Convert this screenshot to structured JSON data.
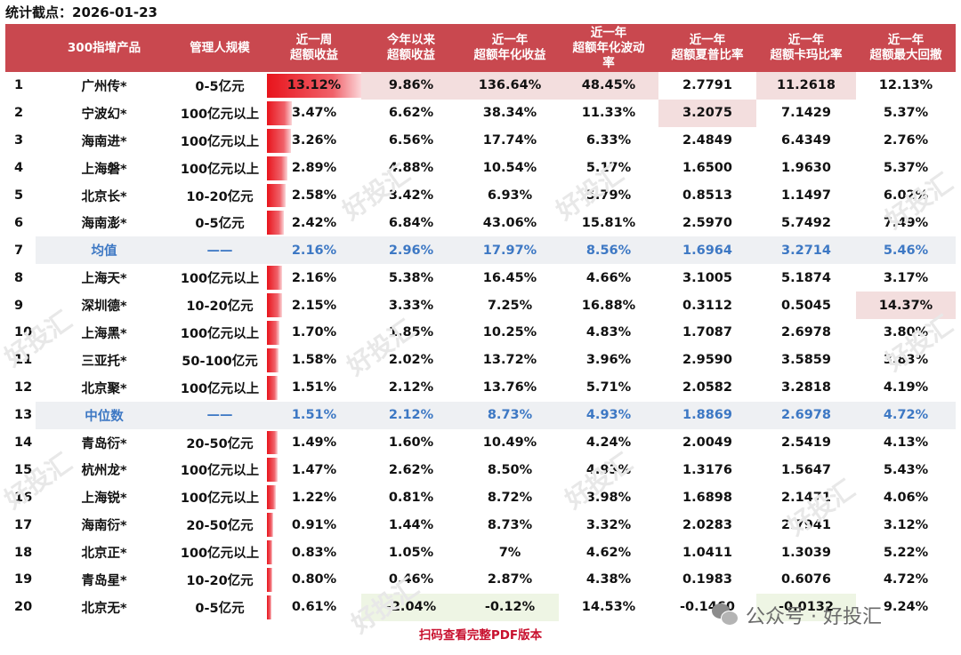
{
  "stat_date": "统计截点：2026-01-23",
  "headers": [
    {
      "lines": [
        "300指增产品"
      ]
    },
    {
      "lines": [
        "管理人规模"
      ]
    },
    {
      "lines": [
        "近一周",
        "超额收益"
      ]
    },
    {
      "lines": [
        "今年以来",
        "超额收益"
      ]
    },
    {
      "lines": [
        "近一年",
        "超额年化收益"
      ]
    },
    {
      "lines": [
        "近一年",
        "超额年化波动",
        "率"
      ]
    },
    {
      "lines": [
        "近一年",
        "超额夏普比率"
      ]
    },
    {
      "lines": [
        "近一年",
        "超额卡玛比率"
      ]
    },
    {
      "lines": [
        "近一年",
        "超额最大回撤"
      ]
    }
  ],
  "rows": [
    {
      "idx": "1",
      "name": "广州传*",
      "scale": "0-5亿元",
      "week": "13.12%",
      "week_pct": 100,
      "ytd": "9.86%",
      "yr_ret": "136.64%",
      "yr_vol": "48.45%",
      "sharpe": "2.7791",
      "calmar": "11.2618",
      "mdd": "12.13%",
      "hl": {
        "ytd": "hi",
        "yr_ret": "hi",
        "yr_vol": "hi",
        "calmar": "hi"
      }
    },
    {
      "idx": "2",
      "name": "宁波幻*",
      "scale": "100亿元以上",
      "week": "3.47%",
      "week_pct": 26,
      "ytd": "6.62%",
      "yr_ret": "38.34%",
      "yr_vol": "11.33%",
      "sharpe": "3.2075",
      "calmar": "7.1429",
      "mdd": "5.37%",
      "hl": {
        "sharpe": "hi"
      }
    },
    {
      "idx": "3",
      "name": "海南进*",
      "scale": "100亿元以上",
      "week": "3.26%",
      "week_pct": 25,
      "ytd": "6.56%",
      "yr_ret": "17.74%",
      "yr_vol": "6.33%",
      "sharpe": "2.4849",
      "calmar": "6.4349",
      "mdd": "2.76%"
    },
    {
      "idx": "4",
      "name": "上海磐*",
      "scale": "100亿元以上",
      "week": "2.89%",
      "week_pct": 22,
      "ytd": "4.88%",
      "yr_ret": "10.54%",
      "yr_vol": "5.17%",
      "sharpe": "1.6500",
      "calmar": "1.9630",
      "mdd": "5.37%"
    },
    {
      "idx": "5",
      "name": "北京长*",
      "scale": "10-20亿元",
      "week": "2.58%",
      "week_pct": 20,
      "ytd": "3.42%",
      "yr_ret": "6.93%",
      "yr_vol": "5.79%",
      "sharpe": "0.8513",
      "calmar": "1.1497",
      "mdd": "6.02%"
    },
    {
      "idx": "6",
      "name": "海南澎*",
      "scale": "0-5亿元",
      "week": "2.42%",
      "week_pct": 18,
      "ytd": "6.84%",
      "yr_ret": "43.06%",
      "yr_vol": "15.81%",
      "sharpe": "2.5970",
      "calmar": "5.7492",
      "mdd": "7.49%"
    },
    {
      "idx": "7",
      "name": "均值",
      "scale": "——",
      "week": "2.16%",
      "week_pct": 0,
      "ytd": "2.96%",
      "yr_ret": "17.97%",
      "yr_vol": "8.56%",
      "sharpe": "1.6964",
      "calmar": "3.2714",
      "mdd": "5.46%",
      "avg": true
    },
    {
      "idx": "8",
      "name": "上海天*",
      "scale": "100亿元以上",
      "week": "2.16%",
      "week_pct": 16,
      "ytd": "5.38%",
      "yr_ret": "16.45%",
      "yr_vol": "4.66%",
      "sharpe": "3.1005",
      "calmar": "5.1874",
      "mdd": "3.17%"
    },
    {
      "idx": "9",
      "name": "深圳德*",
      "scale": "10-20亿元",
      "week": "2.15%",
      "week_pct": 16,
      "ytd": "3.33%",
      "yr_ret": "7.25%",
      "yr_vol": "16.88%",
      "sharpe": "0.3112",
      "calmar": "0.5045",
      "mdd": "14.37%",
      "hl": {
        "mdd": "hi"
      }
    },
    {
      "idx": "10",
      "name": "上海黑*",
      "scale": "100亿元以上",
      "week": "1.70%",
      "week_pct": 13,
      "ytd": "1.85%",
      "yr_ret": "10.25%",
      "yr_vol": "4.83%",
      "sharpe": "1.7087",
      "calmar": "2.6978",
      "mdd": "3.80%"
    },
    {
      "idx": "11",
      "name": "三亚托*",
      "scale": "50-100亿元",
      "week": "1.58%",
      "week_pct": 12,
      "ytd": "2.02%",
      "yr_ret": "13.72%",
      "yr_vol": "3.96%",
      "sharpe": "2.9590",
      "calmar": "3.5859",
      "mdd": "3.83%"
    },
    {
      "idx": "12",
      "name": "北京聚*",
      "scale": "100亿元以上",
      "week": "1.51%",
      "week_pct": 11,
      "ytd": "2.12%",
      "yr_ret": "13.76%",
      "yr_vol": "5.71%",
      "sharpe": "2.0582",
      "calmar": "3.2818",
      "mdd": "4.19%"
    },
    {
      "idx": "13",
      "name": "中位数",
      "scale": "——",
      "week": "1.51%",
      "week_pct": 0,
      "ytd": "2.12%",
      "yr_ret": "8.73%",
      "yr_vol": "4.93%",
      "sharpe": "1.8869",
      "calmar": "2.6978",
      "mdd": "4.72%",
      "avg": true
    },
    {
      "idx": "14",
      "name": "青岛衍*",
      "scale": "20-50亿元",
      "week": "1.49%",
      "week_pct": 11,
      "ytd": "1.60%",
      "yr_ret": "10.49%",
      "yr_vol": "4.24%",
      "sharpe": "2.0049",
      "calmar": "2.5419",
      "mdd": "4.13%"
    },
    {
      "idx": "15",
      "name": "杭州龙*",
      "scale": "100亿元以上",
      "week": "1.47%",
      "week_pct": 11,
      "ytd": "2.62%",
      "yr_ret": "8.50%",
      "yr_vol": "4.93%",
      "sharpe": "1.3176",
      "calmar": "1.5647",
      "mdd": "5.43%"
    },
    {
      "idx": "16",
      "name": "上海锐*",
      "scale": "100亿元以上",
      "week": "1.22%",
      "week_pct": 9,
      "ytd": "0.81%",
      "yr_ret": "8.72%",
      "yr_vol": "3.98%",
      "sharpe": "1.6898",
      "calmar": "2.1471",
      "mdd": "4.06%"
    },
    {
      "idx": "17",
      "name": "海南衍*",
      "scale": "20-50亿元",
      "week": "0.91%",
      "week_pct": 7,
      "ytd": "1.44%",
      "yr_ret": "8.73%",
      "yr_vol": "3.32%",
      "sharpe": "2.0283",
      "calmar": "2.7941",
      "mdd": "3.12%"
    },
    {
      "idx": "18",
      "name": "北京正*",
      "scale": "100亿元以上",
      "week": "0.83%",
      "week_pct": 6,
      "ytd": "1.05%",
      "yr_ret": "7%",
      "yr_vol": "4.62%",
      "sharpe": "1.0411",
      "calmar": "1.3039",
      "mdd": "5.22%"
    },
    {
      "idx": "19",
      "name": "青岛星*",
      "scale": "10-20亿元",
      "week": "0.80%",
      "week_pct": 6,
      "ytd": "0.46%",
      "yr_ret": "2.87%",
      "yr_vol": "4.38%",
      "sharpe": "0.1983",
      "calmar": "0.6076",
      "mdd": "4.72%"
    },
    {
      "idx": "20",
      "name": "北京无*",
      "scale": "0-5亿元",
      "week": "0.61%",
      "week_pct": 5,
      "ytd": "-2.04%",
      "yr_ret": "-0.12%",
      "yr_vol": "14.53%",
      "sharpe": "-0.1460",
      "calmar": "-0.0132",
      "mdd": "9.24%",
      "hl": {
        "ytd": "lo",
        "yr_ret": "lo",
        "calmar": "lo"
      }
    }
  ],
  "watermark": "好投汇",
  "brand": {
    "icon": "wechat-icon",
    "label": "公众号 · 好投汇"
  },
  "footer": "扫码查看完整PDF版本"
}
